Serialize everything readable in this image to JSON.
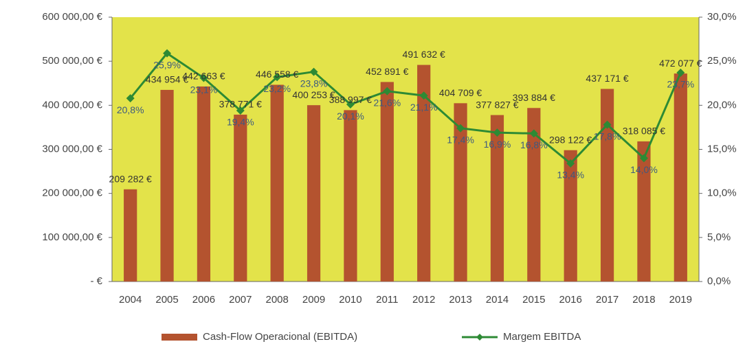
{
  "chart_data": {
    "type": "combo",
    "categories": [
      "2004",
      "2005",
      "2006",
      "2007",
      "2008",
      "2009",
      "2010",
      "2011",
      "2012",
      "2013",
      "2014",
      "2015",
      "2016",
      "2017",
      "2018",
      "2019"
    ],
    "series": [
      {
        "name": "Cash-Flow Operacional (EBITDA)",
        "type": "bar",
        "color": "#b4532f",
        "values": [
          209282,
          434954,
          442663,
          378771,
          446558,
          400253,
          388997,
          452891,
          491632,
          404709,
          377827,
          393884,
          298122,
          437171,
          318085,
          472077
        ],
        "value_labels": [
          "209 282 €",
          "434 954 €",
          "442 663 €",
          "378 771 €",
          "446 558 €",
          "400 253 €",
          "388 997 €",
          "452 891 €",
          "491 632 €",
          "404 709 €",
          "377 827 €",
          "393 884 €",
          "298 122 €",
          "437 171 €",
          "318 085 €",
          "472 077 €"
        ]
      },
      {
        "name": "Margem EBITDA",
        "type": "line",
        "axis": "y2",
        "color": "#2d8a34",
        "values": [
          20.8,
          25.9,
          23.1,
          19.4,
          23.2,
          23.8,
          20.1,
          21.6,
          21.1,
          17.4,
          16.9,
          16.8,
          13.4,
          17.8,
          14.0,
          23.7
        ],
        "value_labels": [
          "20,8%",
          "25,9%",
          "23,1%",
          "19,4%",
          "23,2%",
          "23,8%",
          "20,1%",
          "21,6%",
          "21,1%",
          "17,4%",
          "16,9%",
          "16,8%",
          "13,4%",
          "17,8%",
          "14,0%",
          "23,7%"
        ]
      }
    ],
    "ylim": [
      0,
      600000
    ],
    "yticks": [
      {
        "value": 0,
        "label": "-   €"
      },
      {
        "value": 100000,
        "label": "100 000,00 €"
      },
      {
        "value": 200000,
        "label": "200 000,00 €"
      },
      {
        "value": 300000,
        "label": "300 000,00 €"
      },
      {
        "value": 400000,
        "label": "400 000,00 €"
      },
      {
        "value": 500000,
        "label": "500 000,00 €"
      },
      {
        "value": 600000,
        "label": "600 000,00 €"
      }
    ],
    "y2lim": [
      0,
      30
    ],
    "y2ticks": [
      {
        "value": 0,
        "label": "0,0%"
      },
      {
        "value": 5,
        "label": "5,0%"
      },
      {
        "value": 10,
        "label": "10,0%"
      },
      {
        "value": 15,
        "label": "15,0%"
      },
      {
        "value": 20,
        "label": "20,0%"
      },
      {
        "value": 25,
        "label": "25,0%"
      },
      {
        "value": 30,
        "label": "30,0%"
      }
    ],
    "plot_background": "#e3e34a"
  }
}
